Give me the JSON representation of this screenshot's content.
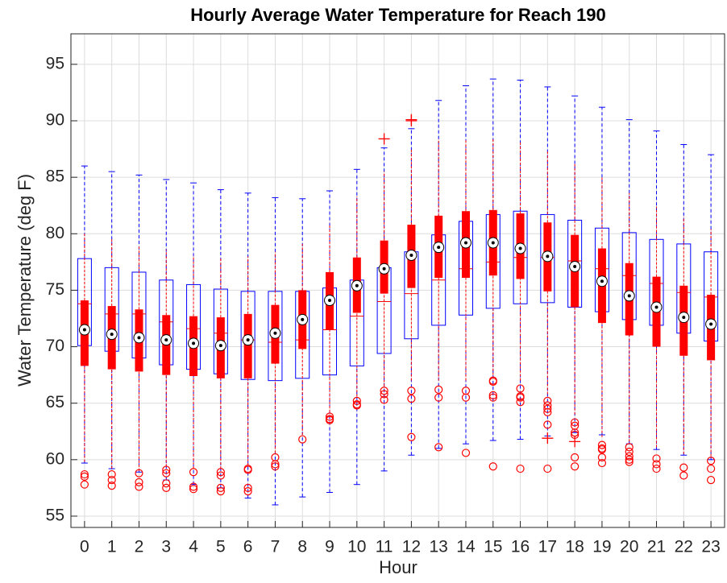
{
  "chart_data": {
    "type": "box",
    "title": "Hourly Average Water Temperature for Reach 190",
    "xlabel": "Hour",
    "ylabel": "Water Temperature (deg F)",
    "categories": [
      "0",
      "1",
      "2",
      "3",
      "4",
      "5",
      "6",
      "7",
      "8",
      "9",
      "10",
      "11",
      "12",
      "13",
      "14",
      "15",
      "16",
      "17",
      "18",
      "19",
      "20",
      "21",
      "22",
      "23"
    ],
    "ylim": [
      54,
      97.7
    ],
    "yticks": [
      55,
      60,
      65,
      70,
      75,
      80,
      85,
      90,
      95
    ],
    "grid": true,
    "series": [
      {
        "style": "outline",
        "color": "#0000ff",
        "median_color": "#ff0000",
        "outlier_marker": "+",
        "outlier_color": "#ff0000",
        "boxes": [
          {
            "low": 59.7,
            "q1": 70.1,
            "median": 73.8,
            "q3": 77.8,
            "high": 86.0,
            "outliers": []
          },
          {
            "low": 59.2,
            "q1": 69.6,
            "median": 72.9,
            "q3": 77.0,
            "high": 85.5,
            "outliers": []
          },
          {
            "low": 58.9,
            "q1": 69.0,
            "median": 72.9,
            "q3": 76.6,
            "high": 85.2,
            "outliers": []
          },
          {
            "low": 58.2,
            "q1": 68.4,
            "median": 72.2,
            "q3": 75.9,
            "high": 84.8,
            "outliers": []
          },
          {
            "low": 57.8,
            "q1": 68.0,
            "median": 71.6,
            "q3": 75.5,
            "high": 84.5,
            "outliers": []
          },
          {
            "low": 57.5,
            "q1": 67.6,
            "median": 71.2,
            "q3": 75.1,
            "high": 83.9,
            "outliers": []
          },
          {
            "low": 56.6,
            "q1": 67.1,
            "median": 70.6,
            "q3": 74.9,
            "high": 83.6,
            "outliers": []
          },
          {
            "low": 56.0,
            "q1": 67.0,
            "median": 70.4,
            "q3": 74.9,
            "high": 83.2,
            "outliers": []
          },
          {
            "low": 56.7,
            "q1": 67.2,
            "median": 70.6,
            "q3": 74.9,
            "high": 83.1,
            "outliers": []
          },
          {
            "low": 57.1,
            "q1": 67.5,
            "median": 71.5,
            "q3": 75.2,
            "high": 83.8,
            "outliers": []
          },
          {
            "low": 57.8,
            "q1": 68.3,
            "median": 72.7,
            "q3": 75.9,
            "high": 85.7,
            "outliers": []
          },
          {
            "low": 59.0,
            "q1": 69.4,
            "median": 74.0,
            "q3": 77.0,
            "high": 87.6,
            "outliers": [
              88.4
            ]
          },
          {
            "low": 60.4,
            "q1": 70.7,
            "median": 74.7,
            "q3": 78.4,
            "high": 89.3,
            "outliers": [
              90.0,
              90.1
            ]
          },
          {
            "low": 61.0,
            "q1": 71.9,
            "median": 75.9,
            "q3": 79.9,
            "high": 91.8,
            "outliers": []
          },
          {
            "low": 61.4,
            "q1": 72.8,
            "median": 76.9,
            "q3": 81.1,
            "high": 93.1,
            "outliers": []
          },
          {
            "low": 61.7,
            "q1": 73.4,
            "median": 77.5,
            "q3": 81.7,
            "high": 93.7,
            "outliers": []
          },
          {
            "low": 61.8,
            "q1": 73.8,
            "median": 77.9,
            "q3": 82.0,
            "high": 93.6,
            "outliers": []
          },
          {
            "low": 62.1,
            "q1": 73.9,
            "median": 77.9,
            "q3": 81.7,
            "high": 93.0,
            "outliers": [
              61.9
            ]
          },
          {
            "low": 62.4,
            "q1": 73.5,
            "median": 77.6,
            "q3": 81.2,
            "high": 92.2,
            "outliers": [
              61.6
            ]
          },
          {
            "low": 62.2,
            "q1": 73.1,
            "median": 76.9,
            "q3": 80.5,
            "high": 91.2,
            "outliers": []
          },
          {
            "low": 61.4,
            "q1": 72.4,
            "median": 76.3,
            "q3": 80.1,
            "high": 90.1,
            "outliers": []
          },
          {
            "low": 60.9,
            "q1": 71.9,
            "median": 75.6,
            "q3": 79.5,
            "high": 89.1,
            "outliers": []
          },
          {
            "low": 60.4,
            "q1": 71.2,
            "median": 74.8,
            "q3": 79.1,
            "high": 87.9,
            "outliers": []
          },
          {
            "low": 60.0,
            "q1": 70.5,
            "median": 74.4,
            "q3": 78.4,
            "high": 87.0,
            "outliers": []
          }
        ]
      },
      {
        "style": "compact",
        "color": "#ff0000",
        "outlier_marker": "o",
        "outlier_color": "#ff0000",
        "boxes": [
          {
            "low": 59.8,
            "q1": 68.3,
            "median": 71.5,
            "q3": 74.1,
            "high": 80.0,
            "outliers": [
              58.5,
              58.7,
              57.8
            ]
          },
          {
            "low": 59.2,
            "q1": 68.0,
            "median": 71.1,
            "q3": 73.6,
            "high": 79.5,
            "outliers": [
              58.2,
              58.7,
              57.7
            ]
          },
          {
            "low": 59.0,
            "q1": 67.8,
            "median": 70.8,
            "q3": 73.3,
            "high": 79.0,
            "outliers": [
              58.8,
              58.0,
              57.6
            ]
          },
          {
            "low": 59.4,
            "q1": 67.5,
            "median": 70.6,
            "q3": 72.8,
            "high": 78.6,
            "outliers": [
              59.1,
              58.8,
              57.9,
              57.5
            ]
          },
          {
            "low": 59.2,
            "q1": 67.4,
            "median": 70.3,
            "q3": 72.7,
            "high": 78.1,
            "outliers": [
              58.9,
              57.6,
              57.4
            ]
          },
          {
            "low": 59.2,
            "q1": 67.2,
            "median": 70.1,
            "q3": 72.6,
            "high": 77.8,
            "outliers": [
              58.9,
              58.6,
              57.5,
              57.2
            ]
          },
          {
            "low": 59.5,
            "q1": 67.2,
            "median": 70.6,
            "q3": 72.9,
            "high": 78.0,
            "outliers": [
              59.2,
              59.1,
              57.5,
              57.2
            ]
          },
          {
            "low": 60.6,
            "q1": 68.5,
            "median": 71.2,
            "q3": 73.7,
            "high": 78.4,
            "outliers": [
              60.2,
              59.6,
              59.4
            ]
          },
          {
            "low": 62.2,
            "q1": 69.8,
            "median": 72.4,
            "q3": 75.0,
            "high": 79.1,
            "outliers": [
              61.8
            ]
          },
          {
            "low": 64.2,
            "q1": 71.5,
            "median": 74.1,
            "q3": 76.6,
            "high": 80.9,
            "outliers": [
              63.8,
              63.5,
              63.6
            ]
          },
          {
            "low": 65.6,
            "q1": 73.0,
            "median": 75.4,
            "q3": 77.9,
            "high": 83.3,
            "outliers": [
              65.2,
              64.9,
              64.8
            ]
          },
          {
            "low": 66.5,
            "q1": 74.7,
            "median": 76.9,
            "q3": 79.4,
            "high": 85.5,
            "outliers": [
              66.1,
              65.8,
              65.3
            ]
          },
          {
            "low": 67.0,
            "q1": 75.2,
            "median": 78.1,
            "q3": 80.8,
            "high": 87.5,
            "outliers": [
              66.1,
              65.4,
              62.0
            ]
          },
          {
            "low": 67.0,
            "q1": 76.1,
            "median": 78.8,
            "q3": 81.6,
            "high": 88.4,
            "outliers": [
              66.2,
              65.5,
              61.1
            ]
          },
          {
            "low": 67.0,
            "q1": 76.1,
            "median": 79.2,
            "q3": 82.0,
            "high": 88.3,
            "outliers": [
              66.1,
              65.5,
              60.6
            ]
          },
          {
            "low": 67.5,
            "q1": 76.3,
            "median": 79.2,
            "q3": 82.1,
            "high": 88.5,
            "outliers": [
              67.0,
              66.9,
              65.7,
              65.5,
              59.4
            ]
          },
          {
            "low": 67.0,
            "q1": 76.0,
            "median": 78.7,
            "q3": 81.8,
            "high": 88.2,
            "outliers": [
              66.3,
              65.6,
              65.5,
              65.1,
              59.2
            ]
          },
          {
            "low": 65.8,
            "q1": 74.9,
            "median": 78.0,
            "q3": 81.0,
            "high": 87.4,
            "outliers": [
              65.2,
              64.8,
              64.5,
              64.2,
              63.1,
              59.2
            ]
          },
          {
            "low": 64.0,
            "q1": 73.5,
            "median": 77.1,
            "q3": 79.9,
            "high": 86.3,
            "outliers": [
              63.3,
              63.0,
              62.4,
              62.2,
              60.2,
              59.4
            ]
          },
          {
            "low": 62.0,
            "q1": 72.1,
            "median": 75.8,
            "q3": 78.7,
            "high": 85.1,
            "outliers": [
              61.3,
              61.0,
              60.9,
              60.2,
              59.7
            ]
          },
          {
            "low": 61.6,
            "q1": 71.0,
            "median": 74.5,
            "q3": 77.4,
            "high": 83.6,
            "outliers": [
              61.1,
              60.7,
              60.3,
              60.0,
              59.8
            ]
          },
          {
            "low": 61.1,
            "q1": 70.0,
            "median": 73.5,
            "q3": 76.2,
            "high": 82.4,
            "outliers": [
              60.1,
              59.6,
              59.2
            ]
          },
          {
            "low": 60.5,
            "q1": 69.2,
            "median": 72.6,
            "q3": 75.4,
            "high": 81.5,
            "outliers": [
              59.3,
              58.6
            ]
          },
          {
            "low": 60.3,
            "q1": 68.8,
            "median": 72.0,
            "q3": 74.6,
            "high": 80.4,
            "outliers": [
              59.9,
              59.2,
              58.2
            ]
          }
        ]
      }
    ]
  }
}
